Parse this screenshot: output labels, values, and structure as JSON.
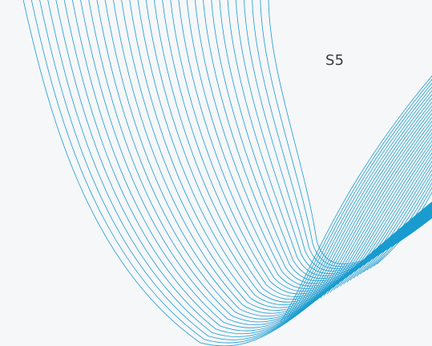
{
  "label": "S5",
  "colors": {
    "background": "#f6f7f9",
    "line": "#1a9bcf"
  },
  "line_families": [
    {
      "name": "lobe-curves",
      "count": 31
    },
    {
      "name": "crossing-curves",
      "count": 30
    }
  ]
}
